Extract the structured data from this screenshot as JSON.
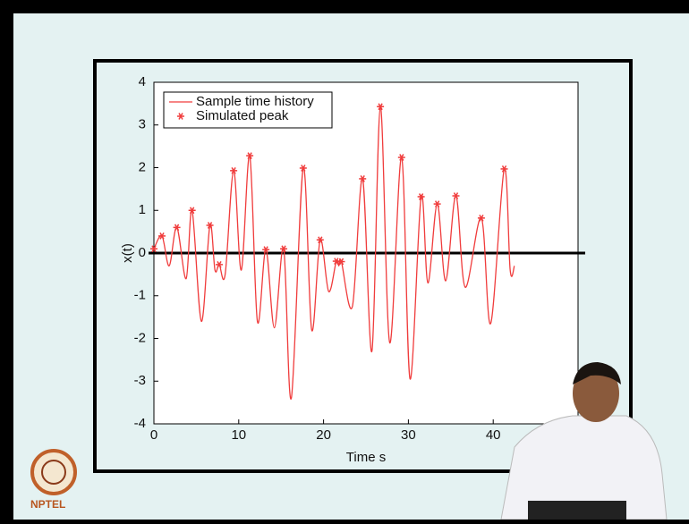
{
  "chart_data": {
    "type": "line",
    "xlabel": "Time s",
    "ylabel": "x(t)",
    "xlim": [
      0,
      50
    ],
    "ylim": [
      -4,
      4
    ],
    "xticks": [
      0,
      10,
      20,
      30,
      40
    ],
    "yticks": [
      -4,
      -3,
      -2,
      -1,
      0,
      1,
      2,
      3,
      4
    ],
    "legend": "upper left",
    "series": [
      {
        "name": "Sample time history",
        "color": "#f03c3c",
        "style": "line",
        "x": [
          0,
          0.95,
          1.8,
          2.7,
          3.8,
          4.5,
          5.6,
          6.6,
          7.2,
          7.7,
          8.4,
          9.4,
          10.3,
          11.3,
          12.2,
          13.2,
          14.2,
          15.3,
          16.2,
          17.6,
          18.6,
          19.6,
          20.6,
          21.5,
          21.8,
          22.1,
          23.4,
          24.6,
          25.7,
          26.7,
          27.8,
          29.2,
          30.2,
          31.5,
          32.3,
          33.4,
          34.4,
          35.6,
          36.7,
          38.6,
          39.7,
          41.3,
          42.0,
          42.5
        ],
        "values": [
          0.1,
          0.4,
          -0.3,
          0.6,
          -0.6,
          1.0,
          -1.6,
          0.65,
          -0.4,
          -0.27,
          -0.5,
          1.93,
          -0.4,
          2.28,
          -1.6,
          0.08,
          -1.75,
          0.1,
          -3.4,
          1.99,
          -1.8,
          0.31,
          -0.9,
          -0.19,
          -0.3,
          -0.2,
          -1.25,
          1.74,
          -2.3,
          3.43,
          -2.1,
          2.24,
          -2.95,
          1.32,
          -0.7,
          1.15,
          -0.65,
          1.34,
          -0.8,
          0.82,
          -1.65,
          1.97,
          -0.4,
          -0.3
        ]
      },
      {
        "name": "Simulated peak",
        "color": "#f03c3c",
        "style": "marker",
        "x": [
          0,
          0.95,
          2.7,
          4.5,
          6.6,
          7.7,
          9.4,
          11.3,
          13.2,
          15.3,
          17.6,
          19.6,
          21.5,
          22.1,
          24.6,
          26.7,
          29.2,
          31.5,
          33.4,
          35.6,
          38.6,
          41.3
        ],
        "values": [
          0.1,
          0.4,
          0.6,
          1.0,
          0.65,
          -0.27,
          1.93,
          2.28,
          0.08,
          0.1,
          1.99,
          0.31,
          -0.19,
          -0.2,
          1.74,
          3.43,
          2.24,
          1.32,
          1.15,
          1.34,
          0.82,
          1.97
        ]
      }
    ]
  },
  "logo": "NPTEL"
}
